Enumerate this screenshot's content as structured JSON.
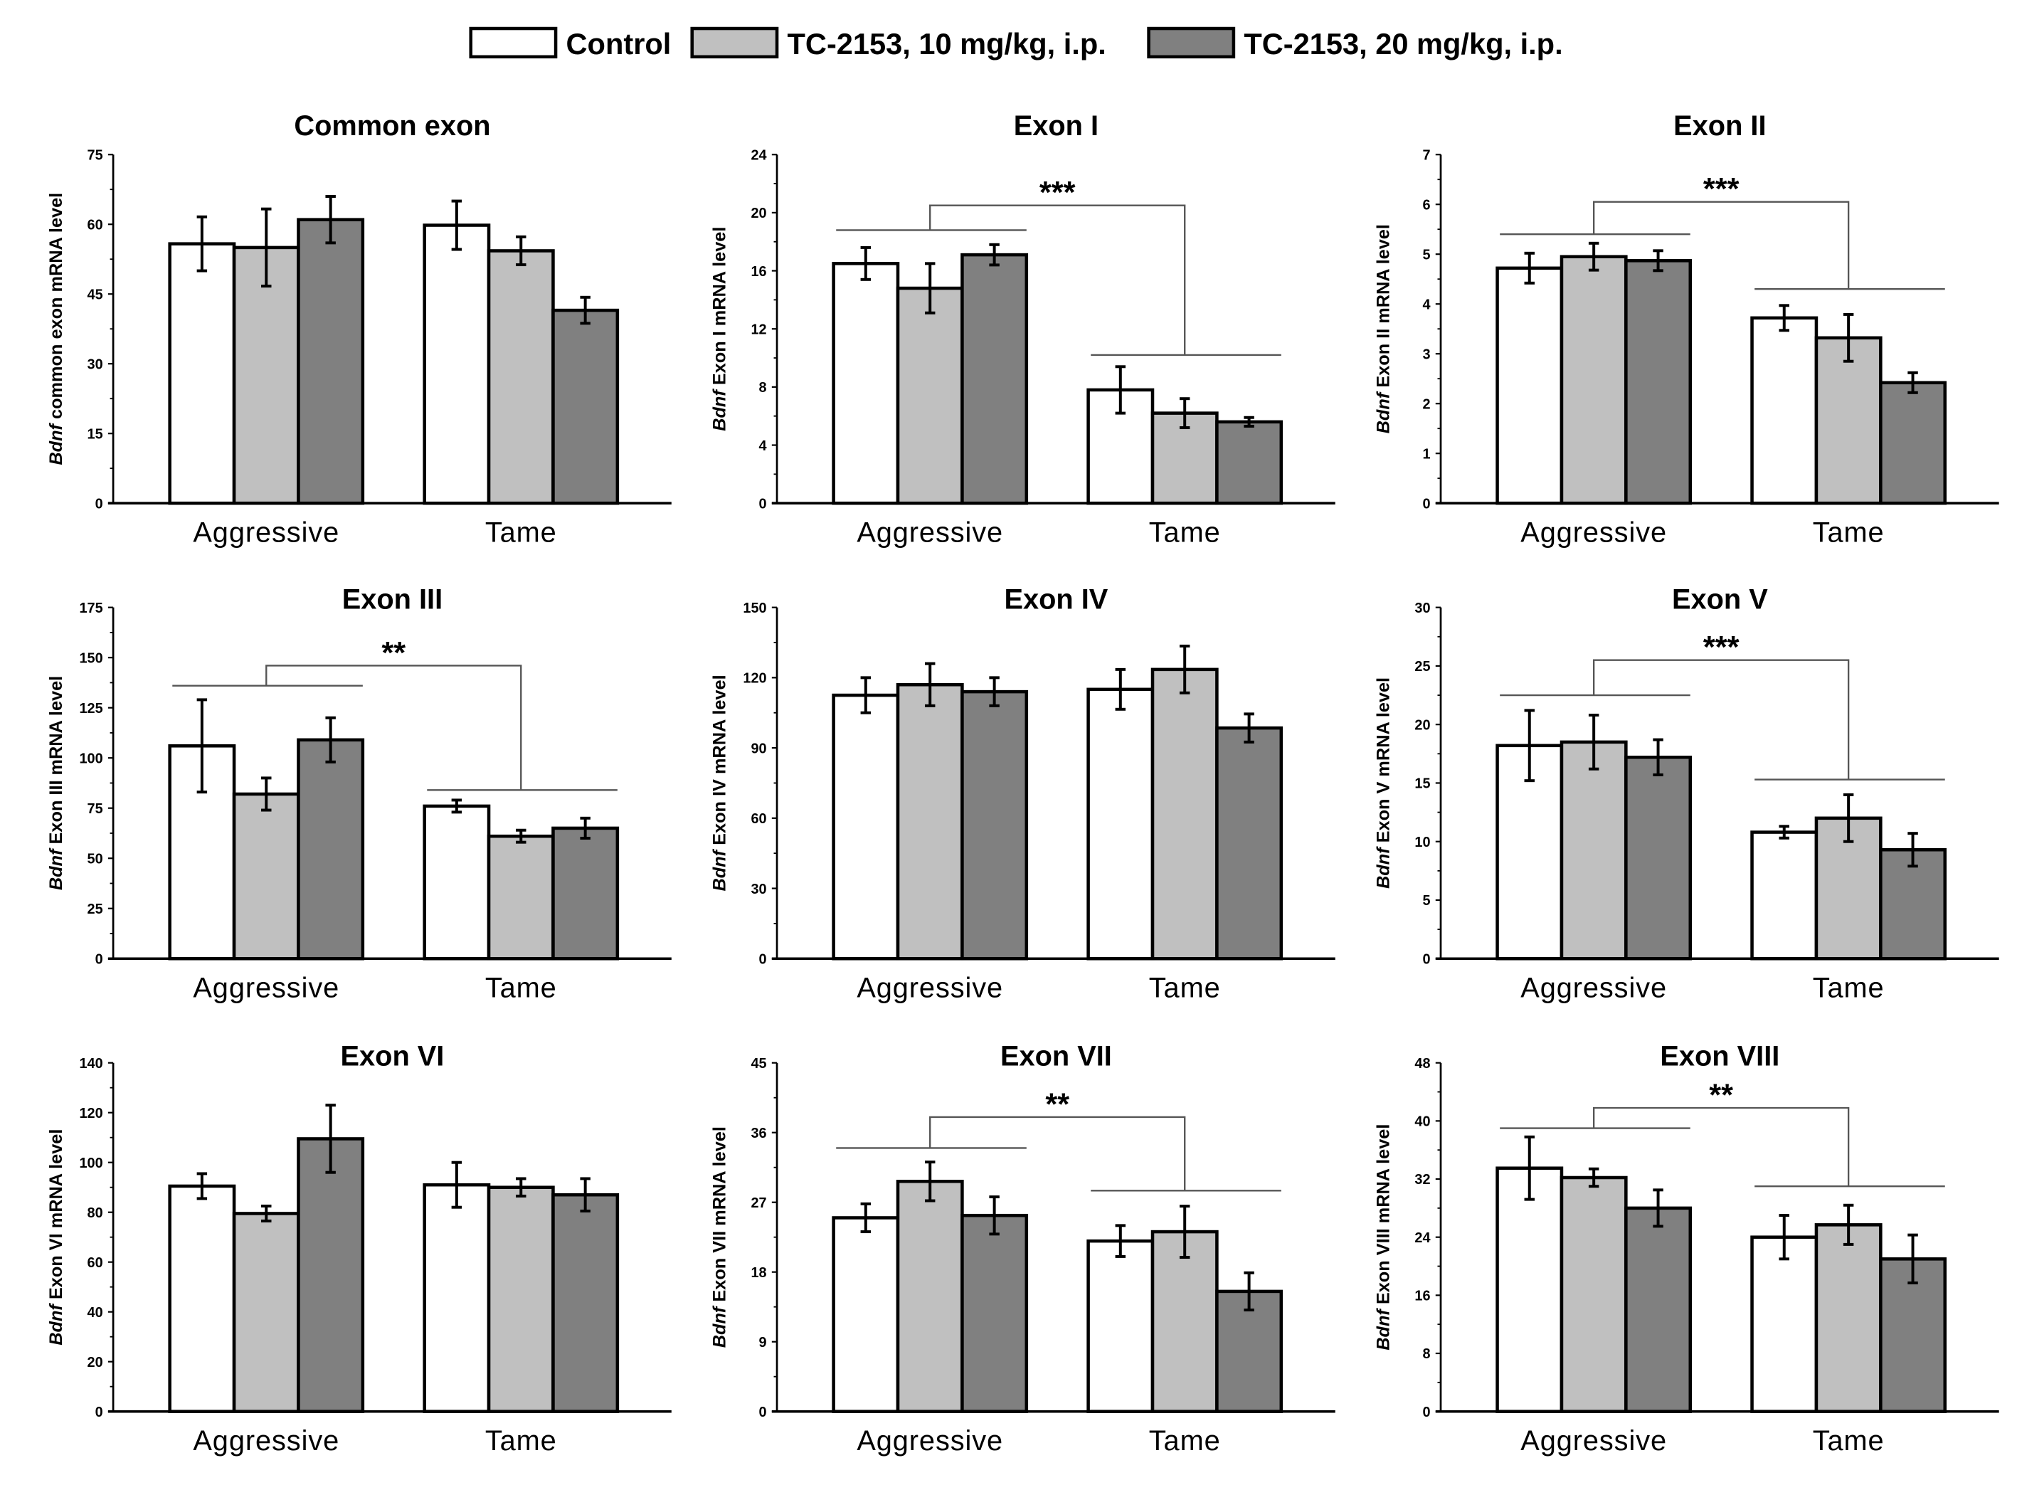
{
  "chart_data": {
    "type": "bar",
    "legend_position": "top-center",
    "categories": [
      "Aggressive",
      "Tame"
    ],
    "legend": [
      {
        "name": "Control",
        "color": "#ffffff"
      },
      {
        "name": "TC-2153, 10 mg/kg, i.p.",
        "color": "#c0c0c0"
      },
      {
        "name": "TC-2153, 20 mg/kg, i.p.",
        "color": "#808080"
      }
    ],
    "panels": [
      {
        "title": "Common exon",
        "ylabel_gene": "Bdnf",
        "ylabel": " common exon mRNA level",
        "ylim": [
          0,
          75
        ],
        "ticks": [
          0,
          15,
          30,
          45,
          60,
          75
        ],
        "series": [
          [
            55.8,
            59.8
          ],
          [
            55.0,
            54.3
          ],
          [
            61.0,
            41.5
          ]
        ],
        "errors": [
          [
            5.8,
            5.2
          ],
          [
            8.3,
            3.0
          ],
          [
            5.0,
            2.8
          ]
        ],
        "significance": null
      },
      {
        "title": "Exon I",
        "ylabel_gene": "Bdnf",
        "ylabel": " Exon I mRNA level",
        "ylim": [
          0,
          24
        ],
        "ticks": [
          0,
          4,
          8,
          12,
          16,
          20,
          24
        ],
        "series": [
          [
            16.5,
            7.8
          ],
          [
            14.8,
            6.2
          ],
          [
            17.1,
            5.6
          ]
        ],
        "errors": [
          [
            1.1,
            1.6
          ],
          [
            1.7,
            1.0
          ],
          [
            0.7,
            0.3
          ]
        ],
        "significance": {
          "label": "***",
          "aggressive_level": 18.8,
          "tame_level": 10.2,
          "top_level": 20.5
        }
      },
      {
        "title": "Exon II",
        "ylabel_gene": "Bdnf",
        "ylabel": " Exon II mRNA level",
        "ylim": [
          0,
          7
        ],
        "ticks": [
          0,
          1,
          2,
          3,
          4,
          5,
          6,
          7
        ],
        "series": [
          [
            4.72,
            3.72
          ],
          [
            4.95,
            3.32
          ],
          [
            4.87,
            2.42
          ]
        ],
        "errors": [
          [
            0.3,
            0.25
          ],
          [
            0.27,
            0.47
          ],
          [
            0.2,
            0.2
          ]
        ],
        "significance": {
          "label": "***",
          "aggressive_level": 5.4,
          "tame_level": 4.3,
          "top_level": 6.05
        }
      },
      {
        "title": "Exon III",
        "ylabel_gene": "Bdnf",
        "ylabel": " Exon III mRNA level",
        "ylim": [
          0,
          175
        ],
        "ticks": [
          0,
          25,
          50,
          75,
          100,
          125,
          150,
          175
        ],
        "series": [
          [
            106,
            76
          ],
          [
            82,
            61
          ],
          [
            109,
            65
          ]
        ],
        "errors": [
          [
            23,
            3
          ],
          [
            8,
            3
          ],
          [
            11,
            5
          ]
        ],
        "significance": {
          "label": "**",
          "aggressive_level": 136,
          "tame_level": 84,
          "top_level": 146
        }
      },
      {
        "title": "Exon IV",
        "ylabel_gene": "Bdnf",
        "ylabel": " Exon IV mRNA level",
        "ylim": [
          0,
          150
        ],
        "ticks": [
          0,
          30,
          60,
          90,
          120,
          150
        ],
        "series": [
          [
            112.5,
            115
          ],
          [
            117,
            123.5
          ],
          [
            114,
            98.5
          ]
        ],
        "errors": [
          [
            7.5,
            8.5
          ],
          [
            9,
            10
          ],
          [
            6,
            6
          ]
        ],
        "significance": null
      },
      {
        "title": "Exon V",
        "ylabel_gene": "Bdnf",
        "ylabel": " Exon V mRNA level",
        "ylim": [
          0,
          30
        ],
        "ticks": [
          0,
          5,
          10,
          15,
          20,
          25,
          30
        ],
        "series": [
          [
            18.2,
            10.8
          ],
          [
            18.5,
            12.0
          ],
          [
            17.2,
            9.3
          ]
        ],
        "errors": [
          [
            3.0,
            0.5
          ],
          [
            2.3,
            2.0
          ],
          [
            1.5,
            1.4
          ]
        ],
        "significance": {
          "label": "***",
          "aggressive_level": 22.5,
          "tame_level": 15.3,
          "top_level": 25.5
        }
      },
      {
        "title": "Exon VI",
        "ylabel_gene": "Bdnf",
        "ylabel": " Exon VI mRNA level",
        "ylim": [
          0,
          140
        ],
        "ticks": [
          0,
          20,
          40,
          60,
          80,
          100,
          120,
          140
        ],
        "series": [
          [
            90.5,
            91
          ],
          [
            79.5,
            90
          ],
          [
            109.5,
            87
          ]
        ],
        "errors": [
          [
            5,
            9
          ],
          [
            3,
            3.5
          ],
          [
            13.5,
            6.5
          ]
        ],
        "significance": null
      },
      {
        "title": "Exon VII",
        "ylabel_gene": "Bdnf",
        "ylabel": " Exon VII mRNA level",
        "ylim": [
          0,
          45
        ],
        "ticks": [
          0,
          9,
          18,
          27,
          36,
          45
        ],
        "series": [
          [
            25.0,
            22.0
          ],
          [
            29.7,
            23.2
          ],
          [
            25.3,
            15.5
          ]
        ],
        "errors": [
          [
            1.8,
            2.0
          ],
          [
            2.5,
            3.3
          ],
          [
            2.4,
            2.4
          ]
        ],
        "significance": {
          "label": "**",
          "aggressive_level": 34,
          "tame_level": 28.5,
          "top_level": 38
        }
      },
      {
        "title": "Exon VIII",
        "ylabel_gene": "Bdnf",
        "ylabel": " Exon VIII mRNA level",
        "ylim": [
          0,
          48
        ],
        "ticks": [
          0,
          8,
          16,
          24,
          32,
          40,
          48
        ],
        "series": [
          [
            33.5,
            24.0
          ],
          [
            32.2,
            25.7
          ],
          [
            28.0,
            21.0
          ]
        ],
        "errors": [
          [
            4.3,
            3.0
          ],
          [
            1.2,
            2.7
          ],
          [
            2.5,
            3.3
          ]
        ],
        "significance": {
          "label": "**",
          "aggressive_level": 39,
          "tame_level": 31,
          "top_level": 41.8
        }
      }
    ]
  }
}
